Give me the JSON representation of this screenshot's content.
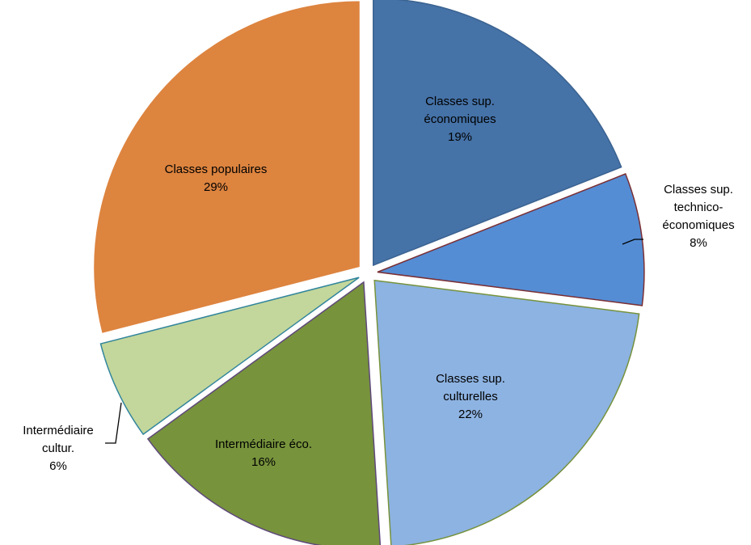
{
  "chart_data": {
    "type": "pie",
    "title": "",
    "slices": [
      {
        "lines": [
          "Classes sup.",
          "économiques"
        ],
        "pct_label": "19%",
        "value": 19,
        "color": "#4572A7",
        "edge": "#3B6391",
        "label_inside": true
      },
      {
        "lines": [
          "Classes sup.",
          "technico-",
          "économiques"
        ],
        "pct_label": "8%",
        "value": 8,
        "color": "#548DD4",
        "edge": "#7A2F34",
        "label_inside": false
      },
      {
        "lines": [
          "Classes sup.",
          "culturelles"
        ],
        "pct_label": "22%",
        "value": 22,
        "color": "#8DB3E2",
        "edge": "#76923C",
        "label_inside": true
      },
      {
        "lines": [
          "Intermédiaire éco."
        ],
        "pct_label": "16%",
        "value": 16,
        "color": "#77933C",
        "edge": "#5F497A",
        "label_inside": true
      },
      {
        "lines": [
          "Intermédiaire",
          "cultur."
        ],
        "pct_label": "6%",
        "value": 6,
        "color": "#C3D69B",
        "edge": "#31859C",
        "label_inside": false
      },
      {
        "lines": [
          "Classes populaires"
        ],
        "pct_label": "29%",
        "value": 29,
        "color": "#DD843F",
        "edge": "#ffffff",
        "label_inside": true
      }
    ]
  }
}
